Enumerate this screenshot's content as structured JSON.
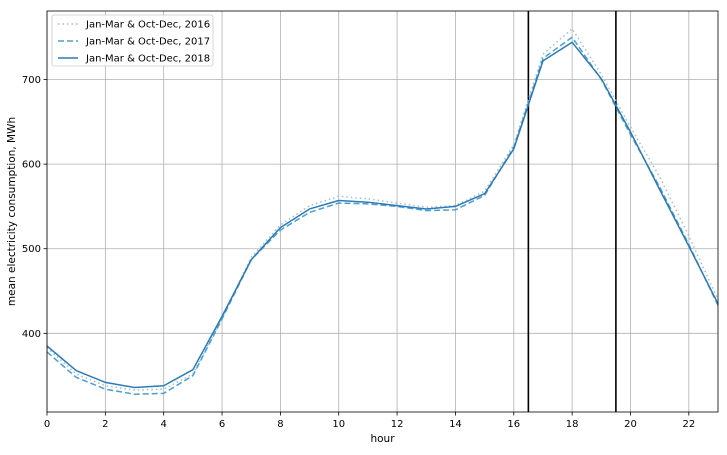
{
  "chart_data": {
    "type": "line",
    "title": "",
    "xlabel": "hour",
    "ylabel": "mean electricity consumption, MWh",
    "xlim": [
      0,
      23
    ],
    "ylim": [
      307,
      781
    ],
    "x_ticks": [
      0,
      2,
      4,
      6,
      8,
      10,
      12,
      14,
      16,
      18,
      20,
      22
    ],
    "y_ticks": [
      400,
      500,
      600,
      700
    ],
    "grid": true,
    "legend_position": "top-left",
    "x": [
      0,
      1,
      2,
      3,
      4,
      5,
      6,
      7,
      8,
      9,
      10,
      11,
      12,
      13,
      14,
      15,
      16,
      17,
      18,
      19,
      20,
      21,
      22,
      23
    ],
    "series": [
      {
        "name": "Jan-Mar & Oct-Dec, 2016",
        "color": "#a3bdd5",
        "style": "dotted",
        "values": [
          383,
          352,
          338,
          333,
          334,
          352,
          418,
          490,
          528,
          551,
          562,
          559,
          554,
          549,
          551,
          568,
          623,
          730,
          760,
          706,
          644,
          585,
          515,
          440
        ]
      },
      {
        "name": "Jan-Mar & Oct-Dec, 2017",
        "color": "#4aa0d0",
        "style": "dashed",
        "values": [
          378,
          348,
          334,
          328,
          329,
          350,
          417,
          487,
          522,
          543,
          554,
          553,
          550,
          545,
          546,
          563,
          620,
          725,
          750,
          700,
          635,
          573,
          505,
          433
        ]
      },
      {
        "name": "Jan-Mar & Oct-Dec, 2018",
        "color": "#2b7bb6",
        "style": "solid",
        "values": [
          385,
          356,
          342,
          336,
          338,
          357,
          420,
          487,
          525,
          547,
          557,
          555,
          551,
          547,
          550,
          565,
          618,
          722,
          744,
          701,
          638,
          570,
          503,
          435
        ]
      }
    ],
    "vertical_lines": [
      16.5,
      19.5
    ],
    "vertical_line_color": "#000000"
  }
}
